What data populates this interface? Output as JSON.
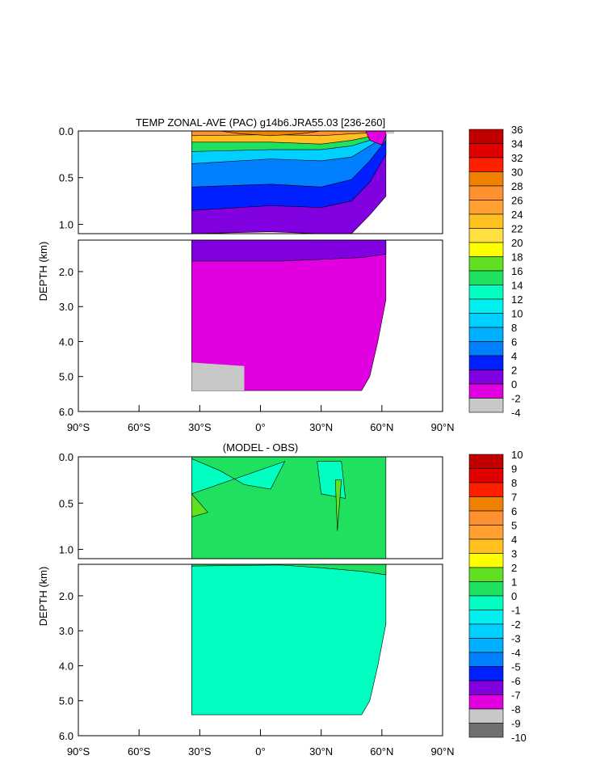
{
  "chart_data": [
    {
      "type": "heatmap",
      "title": "TEMP ZONAL-AVE (PAC) g14b6.JRA55.03 [236-260]",
      "ylabel": "DEPTH (km)",
      "xlim": [
        -90,
        90
      ],
      "ylim_upper": [
        0,
        1.1
      ],
      "ylim_lower": [
        1.1,
        6.0
      ],
      "x_ticks": [
        -90,
        -60,
        -30,
        0,
        30,
        60,
        90
      ],
      "x_tick_labels": [
        "90°S",
        "60°S",
        "30°S",
        "0°",
        "30°N",
        "60°N",
        "90°N"
      ],
      "y_ticks_upper": [
        0.0,
        0.5,
        1.0
      ],
      "y_ticks_lower": [
        2.0,
        3.0,
        4.0,
        5.0,
        6.0
      ],
      "y_tick_labels_upper": [
        "0.0",
        "0.5",
        "1.0"
      ],
      "y_tick_labels_lower": [
        "2.0",
        "3.0",
        "4.0",
        "5.0",
        "6.0"
      ],
      "colorbar_levels": [
        36,
        34,
        32,
        30,
        28,
        26,
        24,
        22,
        20,
        18,
        16,
        14,
        12,
        10,
        8,
        6,
        4,
        2,
        0,
        -2,
        -4
      ],
      "colorbar_labels": [
        "36",
        "34",
        "32",
        "30",
        "28",
        "26",
        "24",
        "22",
        "20",
        "18",
        "16",
        "14",
        "12",
        "10",
        "8",
        "6",
        "4",
        "2",
        "0",
        "-2",
        "-4"
      ],
      "colorbar_colors": [
        "#c00000",
        "#e00000",
        "#ff2000",
        "#f08000",
        "#ff9030",
        "#ffa030",
        "#ffc020",
        "#ffe040",
        "#ffff00",
        "#60e020",
        "#20e060",
        "#00ffc0",
        "#00f0f0",
        "#00d0ff",
        "#00b0ff",
        "#0080ff",
        "#0020ff",
        "#8000e0",
        "#e000e0",
        "#c8c8c8"
      ],
      "basin_lat_range": [
        -34,
        62
      ],
      "upper_layers": [
        {
          "lat": [
            -34,
            5,
            30,
            45,
            54,
            62
          ],
          "depth": [
            0.05,
            0.04,
            0.05,
            0.03,
            0.02,
            0.01
          ],
          "color": "#ff9030"
        },
        {
          "lat": [
            -34,
            5,
            30,
            45,
            54,
            62
          ],
          "depth": [
            0.12,
            0.12,
            0.14,
            0.1,
            0.06,
            0.02
          ],
          "color": "#ffc020"
        },
        {
          "lat": [
            -34,
            5,
            30,
            45,
            54,
            62
          ],
          "depth": [
            0.22,
            0.2,
            0.2,
            0.16,
            0.1,
            0.03
          ],
          "color": "#20e060"
        },
        {
          "lat": [
            -34,
            5,
            30,
            45,
            54,
            62
          ],
          "depth": [
            0.35,
            0.3,
            0.32,
            0.28,
            0.16,
            0.05
          ],
          "color": "#00d0ff"
        },
        {
          "lat": [
            -34,
            5,
            30,
            45,
            54,
            62
          ],
          "depth": [
            0.6,
            0.57,
            0.6,
            0.52,
            0.32,
            0.1
          ],
          "color": "#0080ff"
        },
        {
          "lat": [
            -34,
            5,
            30,
            45,
            54,
            62
          ],
          "depth": [
            0.85,
            0.8,
            0.82,
            0.75,
            0.55,
            0.25
          ],
          "color": "#0020ff"
        },
        {
          "lat": [
            -34,
            5,
            30,
            45,
            54,
            62
          ],
          "depth": [
            1.1,
            1.08,
            1.1,
            1.1,
            0.9,
            0.7
          ],
          "color": "#8000e0"
        }
      ],
      "lower_layers": [
        {
          "lat": [
            -34,
            10,
            30,
            50,
            62
          ],
          "depth": [
            1.7,
            1.7,
            1.65,
            1.6,
            1.5
          ],
          "color": "#8000e0"
        },
        {
          "lat": [
            -34,
            10,
            30,
            50,
            62
          ],
          "depth": [
            6.0,
            6.0,
            6.0,
            6.0,
            6.0
          ],
          "color": "#e000e0"
        }
      ],
      "seafloor": {
        "lat": [
          -34,
          50,
          54,
          58,
          62
        ],
        "depth": [
          5.4,
          5.4,
          5.0,
          4.0,
          2.8
        ]
      },
      "gray_patch": {
        "lat": [
          -34,
          -8,
          -8,
          -34
        ],
        "depth": [
          4.6,
          4.7,
          5.4,
          5.4
        ],
        "color": "#c8c8c8"
      }
    },
    {
      "type": "heatmap",
      "title": "(MODEL - OBS)",
      "ylabel": "DEPTH (km)",
      "xlim": [
        -90,
        90
      ],
      "ylim_upper": [
        0,
        1.1
      ],
      "ylim_lower": [
        1.1,
        6.0
      ],
      "x_ticks": [
        -90,
        -60,
        -30,
        0,
        30,
        60,
        90
      ],
      "x_tick_labels": [
        "90°S",
        "60°S",
        "30°S",
        "0°",
        "30°N",
        "60°N",
        "90°N"
      ],
      "y_ticks_upper": [
        0.0,
        0.5,
        1.0
      ],
      "y_ticks_lower": [
        2.0,
        3.0,
        4.0,
        5.0,
        6.0
      ],
      "y_tick_labels_upper": [
        "0.0",
        "0.5",
        "1.0"
      ],
      "y_tick_labels_lower": [
        "2.0",
        "3.0",
        "4.0",
        "5.0",
        "6.0"
      ],
      "colorbar_levels": [
        10,
        9,
        8,
        7,
        6,
        5,
        4,
        3,
        2,
        1,
        0,
        -1,
        -2,
        -3,
        -4,
        -5,
        -6,
        -7,
        -8,
        -9,
        -10
      ],
      "colorbar_labels": [
        "10",
        "9",
        "8",
        "7",
        "6",
        "5",
        "4",
        "3",
        "2",
        "1",
        "0",
        "-1",
        "-2",
        "-3",
        "-4",
        "-5",
        "-6",
        "-7",
        "-8",
        "-9",
        "-10"
      ],
      "colorbar_colors": [
        "#c00000",
        "#e00000",
        "#ff2000",
        "#f08000",
        "#ff9030",
        "#ffa030",
        "#ffc020",
        "#ffff00",
        "#60e020",
        "#20e060",
        "#00ffc0",
        "#00f0f0",
        "#00d0ff",
        "#00b0ff",
        "#0080ff",
        "#0020ff",
        "#8000e0",
        "#e000e0",
        "#c8c8c8",
        "#707070"
      ],
      "basin_lat_range": [
        -34,
        62
      ],
      "upper_layers": [
        {
          "lat": [
            -34,
            5,
            30,
            45,
            54,
            62
          ],
          "depth": [
            1.1,
            1.1,
            1.1,
            1.1,
            1.1,
            1.1
          ],
          "color": "#20e060"
        }
      ],
      "upper_blobs": [
        {
          "lat": [
            -34,
            -20,
            -8,
            5,
            12,
            -34
          ],
          "depth": [
            0.02,
            0.15,
            0.3,
            0.35,
            0.05,
            0.4
          ],
          "color": "#00ffc0"
        },
        {
          "lat": [
            28,
            40,
            42,
            30
          ],
          "depth": [
            0.05,
            0.05,
            0.45,
            0.4
          ],
          "color": "#00ffc0"
        },
        {
          "lat": [
            -34,
            -26,
            -34
          ],
          "depth": [
            0.4,
            0.6,
            0.65
          ],
          "color": "#60e020"
        },
        {
          "lat": [
            37,
            40,
            38
          ],
          "depth": [
            0.25,
            0.25,
            0.8
          ],
          "color": "#60e020"
        }
      ],
      "lower_layers": [
        {
          "lat": [
            -34,
            10,
            30,
            50,
            62
          ],
          "depth": [
            1.15,
            1.12,
            1.2,
            1.3,
            1.4
          ],
          "color": "#20e060"
        },
        {
          "lat": [
            -34,
            10,
            30,
            50,
            62
          ],
          "depth": [
            6.0,
            6.0,
            6.0,
            6.0,
            6.0
          ],
          "color": "#00ffc0"
        }
      ],
      "seafloor": {
        "lat": [
          -34,
          50,
          54,
          58,
          62
        ],
        "depth": [
          5.4,
          5.4,
          5.0,
          4.0,
          2.8
        ]
      },
      "gray_patch": null
    }
  ]
}
